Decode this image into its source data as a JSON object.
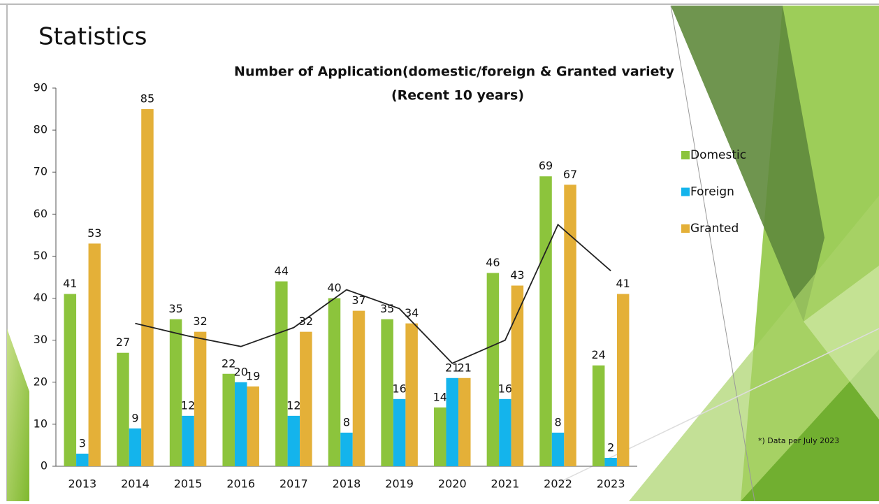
{
  "slide_title": "Statistics",
  "footnote": "*) Data per July 2023",
  "chart_data": {
    "type": "bar",
    "title": [
      "Number of Application(domestic/foreign & Granted variety",
      "(Recent 10 years)"
    ],
    "categories": [
      "2013",
      "2014",
      "2015",
      "2016",
      "2017",
      "2018",
      "2019",
      "2020",
      "2021",
      "2022",
      "2023"
    ],
    "series": [
      {
        "name": "Domestic",
        "color": "#8cc43c",
        "values": [
          41,
          27,
          35,
          22,
          44,
          40,
          35,
          14,
          46,
          69,
          24
        ]
      },
      {
        "name": "Foreign",
        "color": "#14b4ec",
        "values": [
          3,
          9,
          12,
          20,
          12,
          8,
          16,
          21,
          16,
          8,
          2
        ]
      },
      {
        "name": "Granted",
        "color": "#e4b038",
        "values": [
          53,
          85,
          32,
          19,
          32,
          37,
          34,
          21,
          43,
          67,
          41
        ]
      }
    ],
    "trend_line": {
      "color": "#222222",
      "values": [
        null,
        34,
        31,
        28.5,
        33,
        42,
        37.5,
        24.5,
        30,
        57.5,
        46.5
      ]
    },
    "ylim": [
      0,
      90
    ],
    "yticks": [
      0,
      10,
      20,
      30,
      40,
      50,
      60,
      70,
      80,
      90
    ],
    "legend": "right",
    "grid": false
  }
}
